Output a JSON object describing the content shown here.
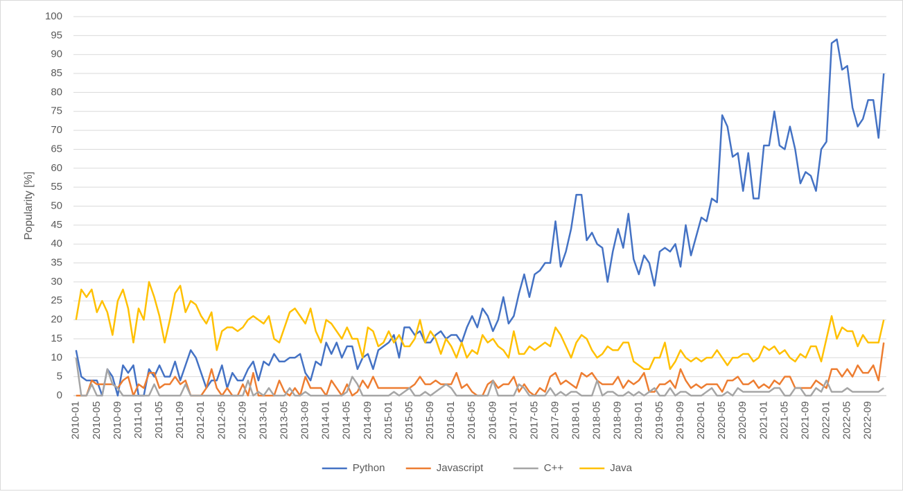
{
  "chart_data": {
    "type": "line",
    "y_label": "Popularity [%]",
    "categories": [
      "2010-01",
      null,
      null,
      null,
      "2010-05",
      null,
      null,
      null,
      "2010-09",
      null,
      null,
      null,
      "2011-01",
      null,
      null,
      null,
      "2011-05",
      null,
      null,
      null,
      "2011-09",
      null,
      null,
      null,
      "2012-01",
      null,
      null,
      null,
      "2012-05",
      null,
      null,
      null,
      "2012-09",
      null,
      null,
      null,
      "2013-01",
      null,
      null,
      null,
      "2013-05",
      null,
      null,
      null,
      "2013-09",
      null,
      null,
      null,
      "2014-01",
      null,
      null,
      null,
      "2014-05",
      null,
      null,
      null,
      "2014-09",
      null,
      null,
      null,
      "2015-01",
      null,
      null,
      null,
      "2015-05",
      null,
      null,
      null,
      "2015-09",
      null,
      null,
      null,
      "2016-01",
      null,
      null,
      null,
      "2016-05",
      null,
      null,
      null,
      "2016-09",
      null,
      null,
      null,
      "2017-01",
      null,
      null,
      null,
      "2017-05",
      null,
      null,
      null,
      "2017-09",
      null,
      null,
      null,
      "2018-01",
      null,
      null,
      null,
      "2018-05",
      null,
      null,
      null,
      "2018-09",
      null,
      null,
      null,
      "2019-01",
      null,
      null,
      null,
      "2019-05",
      null,
      null,
      null,
      "2019-09",
      null,
      null,
      null,
      "2020-01",
      null,
      null,
      null,
      "2020-05",
      null,
      null,
      null,
      "2020-09",
      null,
      null,
      null,
      "2021-01",
      null,
      null,
      null,
      "2021-05",
      null,
      null,
      null,
      "2021-09",
      null,
      null,
      null,
      "2022-01",
      null,
      null,
      null,
      "2022-05",
      null,
      null,
      null,
      "2022-09",
      null,
      null,
      null
    ],
    "series": [
      {
        "name": "Python",
        "color": "#4472c4",
        "values": [
          12,
          5,
          4,
          4,
          4,
          0,
          7,
          5,
          0,
          8,
          6,
          8,
          0,
          0,
          7,
          5,
          8,
          5,
          5,
          9,
          4,
          8,
          12,
          10,
          6,
          2,
          4,
          4,
          8,
          2,
          6,
          4,
          4,
          7,
          9,
          4,
          9,
          8,
          11,
          9,
          9,
          10,
          10,
          11,
          6,
          4,
          9,
          8,
          14,
          11,
          14,
          10,
          13,
          13,
          7,
          10,
          11,
          7,
          12,
          13,
          14,
          16,
          10,
          18,
          18,
          16,
          17,
          14,
          14,
          16,
          17,
          15,
          16,
          16,
          14,
          18,
          21,
          18,
          23,
          21,
          17,
          20,
          26,
          19,
          21,
          27,
          32,
          26,
          32,
          33,
          35,
          35,
          46,
          34,
          38,
          44,
          53,
          53,
          41,
          43,
          40,
          39,
          30,
          38,
          44,
          39,
          48,
          36,
          32,
          37,
          35,
          29,
          38,
          39,
          38,
          40,
          34,
          45,
          37,
          42,
          47,
          46,
          52,
          51,
          74,
          71,
          63,
          64,
          54,
          64,
          52,
          52,
          66,
          66,
          75,
          66,
          65,
          71,
          65,
          56,
          59,
          58,
          54,
          65,
          67,
          93,
          94,
          86,
          87,
          76,
          71,
          73,
          78,
          78,
          68,
          85
        ]
      },
      {
        "name": "Javascript",
        "color": "#ed7d31",
        "values": [
          0,
          0,
          0,
          4,
          3,
          3,
          3,
          3,
          2,
          4,
          5,
          0,
          3,
          2,
          6,
          6,
          2,
          3,
          3,
          5,
          3,
          4,
          0,
          0,
          0,
          2,
          7,
          2,
          0,
          2,
          0,
          0,
          3,
          0,
          6,
          0,
          0,
          0,
          0,
          4,
          1,
          0,
          2,
          0,
          5,
          2,
          2,
          2,
          0,
          4,
          2,
          0,
          3,
          0,
          1,
          4,
          2,
          5,
          2,
          2,
          2,
          2,
          2,
          2,
          2,
          3,
          5,
          3,
          3,
          4,
          3,
          3,
          3,
          6,
          2,
          3,
          1,
          0,
          0,
          3,
          4,
          2,
          3,
          3,
          5,
          1,
          3,
          1,
          0,
          2,
          1,
          5,
          6,
          3,
          4,
          3,
          2,
          6,
          5,
          6,
          4,
          3,
          3,
          3,
          5,
          2,
          4,
          3,
          4,
          6,
          1,
          1,
          3,
          3,
          4,
          2,
          7,
          4,
          2,
          3,
          2,
          3,
          3,
          3,
          1,
          4,
          4,
          5,
          3,
          3,
          4,
          2,
          3,
          2,
          4,
          3,
          5,
          5,
          2,
          2,
          2,
          2,
          4,
          3,
          2,
          7,
          7,
          5,
          7,
          5,
          8,
          6,
          6,
          8,
          4,
          14
        ]
      },
      {
        "name": "C++",
        "color": "#a5a5a5",
        "values": [
          10,
          0,
          0,
          3,
          0,
          0,
          7,
          3,
          2,
          0,
          0,
          0,
          0,
          0,
          0,
          3,
          0,
          0,
          0,
          0,
          0,
          3,
          0,
          0,
          0,
          0,
          0,
          0,
          0,
          0,
          0,
          0,
          0,
          4,
          0,
          1,
          0,
          2,
          0,
          0,
          0,
          2,
          0,
          0,
          1,
          0,
          0,
          0,
          0,
          0,
          0,
          0,
          1,
          5,
          3,
          0,
          0,
          0,
          0,
          0,
          0,
          1,
          0,
          1,
          2,
          0,
          0,
          1,
          0,
          1,
          2,
          3,
          2,
          0,
          0,
          0,
          0,
          0,
          0,
          0,
          4,
          0,
          0,
          0,
          0,
          3,
          2,
          0,
          0,
          0,
          0,
          2,
          0,
          1,
          0,
          1,
          1,
          0,
          0,
          0,
          4,
          0,
          1,
          1,
          0,
          0,
          1,
          0,
          1,
          0,
          1,
          2,
          0,
          0,
          2,
          0,
          1,
          1,
          0,
          0,
          0,
          1,
          2,
          0,
          0,
          1,
          0,
          2,
          1,
          1,
          1,
          1,
          1,
          1,
          2,
          2,
          0,
          0,
          2,
          2,
          0,
          0,
          2,
          1,
          4,
          1,
          1,
          1,
          2,
          1,
          1,
          1,
          1,
          1,
          1,
          2
        ]
      },
      {
        "name": "Java",
        "color": "#ffc000",
        "values": [
          20,
          28,
          26,
          28,
          22,
          25,
          22,
          16,
          25,
          28,
          23,
          14,
          23,
          20,
          30,
          26,
          21,
          14,
          20,
          27,
          29,
          22,
          25,
          24,
          21,
          19,
          22,
          12,
          17,
          18,
          18,
          17,
          18,
          20,
          21,
          20,
          19,
          21,
          15,
          14,
          18,
          22,
          23,
          21,
          19,
          23,
          17,
          14,
          20,
          19,
          17,
          15,
          18,
          15,
          15,
          10,
          18,
          17,
          13,
          14,
          17,
          14,
          16,
          13,
          13,
          15,
          20,
          14,
          17,
          15,
          11,
          15,
          13,
          10,
          14,
          10,
          12,
          11,
          16,
          14,
          15,
          13,
          12,
          10,
          17,
          11,
          11,
          13,
          12,
          13,
          14,
          13,
          18,
          16,
          13,
          10,
          14,
          16,
          15,
          12,
          10,
          11,
          13,
          12,
          12,
          14,
          14,
          9,
          8,
          7,
          7,
          10,
          10,
          14,
          7,
          9,
          12,
          10,
          9,
          10,
          9,
          10,
          10,
          12,
          10,
          8,
          10,
          10,
          11,
          11,
          9,
          10,
          13,
          12,
          13,
          11,
          12,
          10,
          9,
          11,
          10,
          13,
          13,
          9,
          15,
          21,
          15,
          18,
          17,
          17,
          13,
          16,
          14,
          14,
          14,
          20
        ]
      }
    ],
    "ylim": [
      0,
      100
    ],
    "yticks": [
      0,
      5,
      10,
      15,
      20,
      25,
      30,
      35,
      40,
      45,
      50,
      55,
      60,
      65,
      70,
      75,
      80,
      85,
      90,
      95,
      100
    ],
    "grid": true,
    "legend": "bottom"
  }
}
